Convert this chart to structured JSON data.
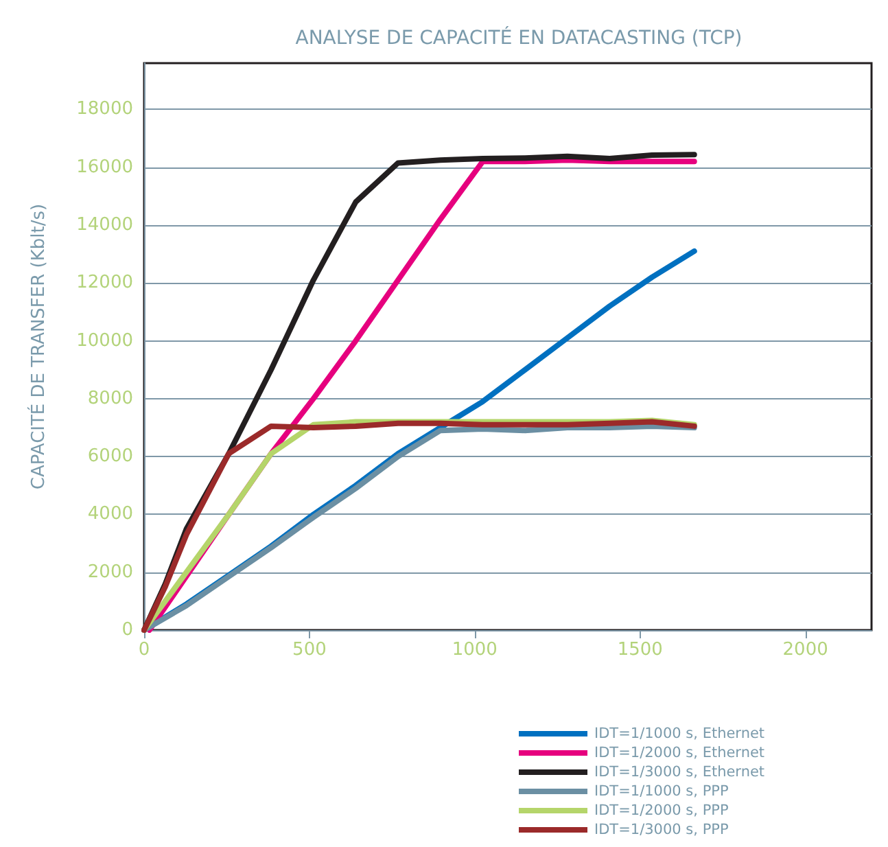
{
  "chart_data": {
    "type": "line",
    "title": "ANALYSE DE CAPACITÉ EN DATACASTING (TCP)",
    "ylabel": "CAPACITÉ DE TRANSFER (Kblt/s)",
    "xlim": [
      0,
      2200
    ],
    "xticks": [
      0,
      500,
      1000,
      1500,
      2000
    ],
    "ylim": [
      0,
      19600
    ],
    "yticks": [
      0,
      2000,
      4000,
      6000,
      8000,
      10000,
      12000,
      14000,
      16000,
      18000
    ],
    "grid": "y",
    "legend": "bottom",
    "marker": "none",
    "line_style": "solid",
    "series": [
      {
        "name": "IDT=1/1000 s, Ethernet",
        "color": "#0070c0",
        "x": [
          0,
          128,
          256,
          384,
          512,
          640,
          768,
          896,
          1024,
          1152,
          1280,
          1408,
          1536,
          1664
        ],
        "values": [
          0,
          900,
          1900,
          2900,
          4000,
          5000,
          6100,
          7000,
          7900,
          9000,
          10100,
          11200,
          12200,
          13100
        ]
      },
      {
        "name": "IDT=1/2000 s, Ethernet",
        "color": "#e6007e",
        "x": [
          16,
          256,
          384,
          512,
          640,
          768,
          896,
          1024,
          1152,
          1280,
          1408,
          1536,
          1664
        ],
        "values": [
          0,
          4000,
          6100,
          8000,
          10000,
          12100,
          14200,
          16200,
          16200,
          16250,
          16200,
          16200,
          16200
        ]
      },
      {
        "name": "IDT=1/3000 s, Ethernet",
        "color": "#231f20",
        "x": [
          0,
          64,
          128,
          256,
          384,
          512,
          640,
          768,
          896,
          1024,
          1152,
          1280,
          1408,
          1536,
          1664
        ],
        "values": [
          0,
          1600,
          3500,
          6100,
          9000,
          12100,
          14800,
          16150,
          16250,
          16300,
          16320,
          16380,
          16300,
          16420,
          16440
        ]
      },
      {
        "name": "IDT=1/1000 s, PPP",
        "color": "#6b8fa3",
        "x": [
          0,
          128,
          256,
          384,
          512,
          640,
          768,
          896,
          1024,
          1152,
          1280,
          1408,
          1536,
          1664
        ],
        "values": [
          0,
          850,
          1850,
          2850,
          3900,
          4900,
          6000,
          6900,
          6950,
          6900,
          7000,
          7000,
          7050,
          7000
        ]
      },
      {
        "name": "IDT=1/2000 s, PPP",
        "color": "#b5d56a",
        "x": [
          0,
          128,
          256,
          384,
          512,
          640,
          768,
          896,
          1024,
          1152,
          1280,
          1408,
          1536,
          1664
        ],
        "values": [
          0,
          2000,
          4000,
          6100,
          7100,
          7200,
          7200,
          7200,
          7200,
          7200,
          7200,
          7200,
          7250,
          7100
        ]
      },
      {
        "name": "IDT=1/3000 s, PPP",
        "color": "#9b2a2a",
        "x": [
          0,
          64,
          128,
          256,
          384,
          512,
          640,
          768,
          896,
          1024,
          1152,
          1280,
          1408,
          1536,
          1664
        ],
        "values": [
          0,
          1500,
          3300,
          6100,
          7050,
          7000,
          7050,
          7150,
          7150,
          7100,
          7100,
          7100,
          7150,
          7200,
          7050
        ]
      }
    ]
  }
}
